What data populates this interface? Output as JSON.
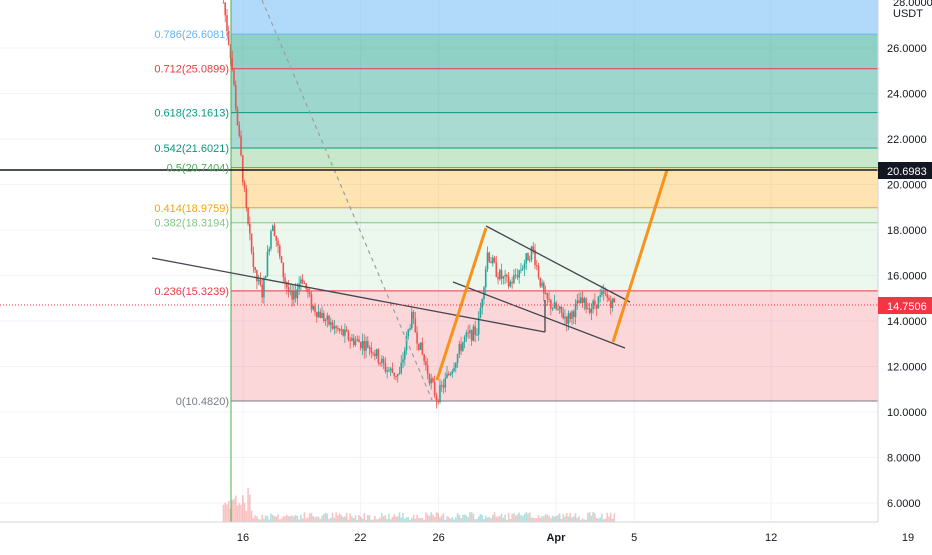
{
  "axis": {
    "currency": "USDT",
    "top_clip": "28.0000",
    "price_labels": [
      "26.0000",
      "24.0000",
      "22.0000",
      "20.0000",
      "18.0000",
      "16.0000",
      "14.0000",
      "12.0000",
      "10.0000",
      "8.0000",
      "6.0000"
    ],
    "price_label_values": [
      26,
      24,
      22,
      20,
      18,
      16,
      14,
      12,
      10,
      8,
      6
    ],
    "time_labels": [
      "16",
      "22",
      "26",
      "Apr",
      "5",
      "12",
      "19"
    ],
    "time_label_days": [
      16,
      22,
      26,
      32,
      36,
      43,
      50
    ],
    "current_price": "14.7506",
    "current_price_value": 14.7506,
    "horizontal_line": "20.6983",
    "horizontal_line_value": 20.6983
  },
  "colors": {
    "fib_0": "#787b86",
    "fib_0236": "#f23645",
    "fib_0382": "#81c784",
    "fib_0414": "#f7a600",
    "fib_05": "#4caf50",
    "fib_0542": "#089981",
    "fib_0618": "#089981",
    "fib_0712": "#f23645",
    "fib_0786": "#64b5f6",
    "up_candle": "#26a69a",
    "down_candle": "#ef5350",
    "pattern_arrow": "#f7931a",
    "price_tag": "#f23645"
  },
  "chart_data": {
    "type": "candlestick",
    "instrument_unit": "USDT",
    "x_axis": "date (March to April)",
    "ylim": [
      5,
      28
    ],
    "fib_levels": [
      {
        "ratio": 0,
        "price": 10.482,
        "label": "0(10.4820)"
      },
      {
        "ratio": 0.236,
        "price": 15.3239,
        "label": "0.236(15.3239)"
      },
      {
        "ratio": 0.382,
        "price": 18.3194,
        "label": "0.382(18.3194)"
      },
      {
        "ratio": 0.414,
        "price": 18.9759,
        "label": "0.414(18.9759)"
      },
      {
        "ratio": 0.5,
        "price": 20.7404,
        "label": "0.5(20.7404)"
      },
      {
        "ratio": 0.542,
        "price": 21.6021,
        "label": "0.542(21.6021)"
      },
      {
        "ratio": 0.618,
        "price": 23.1613,
        "label": "0.618(23.1613)"
      },
      {
        "ratio": 0.712,
        "price": 25.0899,
        "label": "0.712(25.0899)"
      },
      {
        "ratio": 0.786,
        "price": 26.6081,
        "label": "0.786(26.6081)"
      }
    ],
    "price_path": [
      {
        "day": 15.0,
        "price": 28.0
      },
      {
        "day": 15.4,
        "price": 25.5
      },
      {
        "day": 15.8,
        "price": 22.0
      },
      {
        "day": 16.2,
        "price": 18.5
      },
      {
        "day": 16.6,
        "price": 16.0
      },
      {
        "day": 17.0,
        "price": 15.2
      },
      {
        "day": 17.5,
        "price": 18.5
      },
      {
        "day": 18.0,
        "price": 16.2
      },
      {
        "day": 18.5,
        "price": 14.8
      },
      {
        "day": 19.0,
        "price": 16.0
      },
      {
        "day": 19.5,
        "price": 14.7
      },
      {
        "day": 20.5,
        "price": 13.8
      },
      {
        "day": 21.5,
        "price": 13.2
      },
      {
        "day": 22.5,
        "price": 12.9
      },
      {
        "day": 23.3,
        "price": 11.9
      },
      {
        "day": 24.0,
        "price": 11.6
      },
      {
        "day": 24.6,
        "price": 14.2
      },
      {
        "day": 25.2,
        "price": 12.4
      },
      {
        "day": 25.9,
        "price": 10.6
      },
      {
        "day": 26.6,
        "price": 11.8
      },
      {
        "day": 27.3,
        "price": 13.2
      },
      {
        "day": 28.0,
        "price": 13.6
      },
      {
        "day": 28.5,
        "price": 17.0
      },
      {
        "day": 29.0,
        "price": 16.1
      },
      {
        "day": 29.6,
        "price": 15.6
      },
      {
        "day": 30.2,
        "price": 16.3
      },
      {
        "day": 30.8,
        "price": 17.2
      },
      {
        "day": 31.4,
        "price": 15.0
      },
      {
        "day": 32.0,
        "price": 14.5
      },
      {
        "day": 32.6,
        "price": 14.1
      },
      {
        "day": 33.2,
        "price": 14.8
      },
      {
        "day": 33.8,
        "price": 14.6
      },
      {
        "day": 34.4,
        "price": 15.1
      },
      {
        "day": 35.0,
        "price": 14.75
      }
    ]
  }
}
